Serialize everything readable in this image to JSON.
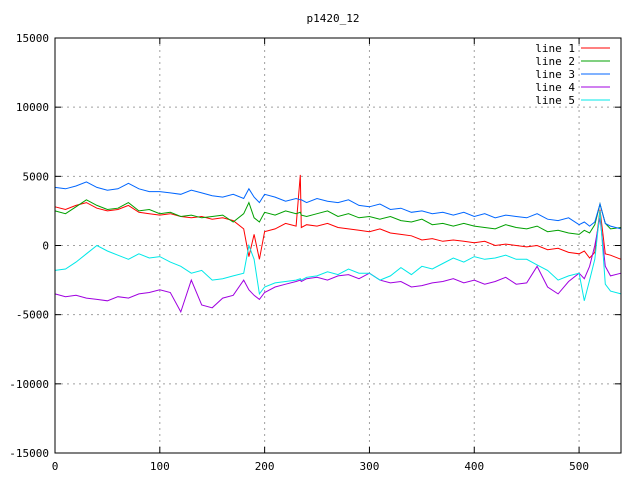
{
  "chart_data": {
    "type": "line",
    "title": "p1420_12",
    "xlabel": "",
    "ylabel": "",
    "xlim": [
      0,
      540
    ],
    "ylim": [
      -15000,
      15000
    ],
    "xticks": [
      0,
      100,
      200,
      300,
      400,
      500
    ],
    "yticks": [
      -15000,
      -10000,
      -5000,
      0,
      5000,
      10000,
      15000
    ],
    "grid": true,
    "legend_position": "top-right",
    "x": [
      0,
      10,
      20,
      30,
      40,
      50,
      60,
      70,
      80,
      90,
      100,
      110,
      120,
      130,
      140,
      150,
      160,
      170,
      180,
      185,
      190,
      195,
      200,
      210,
      220,
      230,
      234,
      235,
      240,
      250,
      260,
      270,
      280,
      290,
      300,
      310,
      320,
      330,
      340,
      350,
      360,
      370,
      380,
      390,
      400,
      410,
      420,
      430,
      440,
      450,
      460,
      470,
      480,
      490,
      500,
      505,
      510,
      515,
      520,
      525,
      530,
      540
    ],
    "series": [
      {
        "name": "line 1",
        "color": "#ff0000",
        "values": [
          2800,
          2600,
          2900,
          3100,
          2700,
          2500,
          2600,
          2900,
          2400,
          2300,
          2200,
          2300,
          2100,
          2000,
          2100,
          1900,
          2000,
          1800,
          1200,
          -800,
          800,
          -1000,
          1000,
          1200,
          1600,
          1400,
          5100,
          1300,
          1500,
          1400,
          1600,
          1300,
          1200,
          1100,
          1000,
          1200,
          900,
          800,
          700,
          400,
          500,
          300,
          400,
          300,
          200,
          300,
          0,
          100,
          0,
          -100,
          0,
          -300,
          -200,
          -500,
          -600,
          -400,
          -900,
          -500,
          2600,
          -600,
          -700,
          -1000
        ]
      },
      {
        "name": "line 2",
        "color": "#00a000",
        "values": [
          2500,
          2300,
          2800,
          3300,
          2900,
          2600,
          2700,
          3100,
          2500,
          2600,
          2300,
          2400,
          2100,
          2200,
          2000,
          2100,
          2200,
          1700,
          2300,
          3100,
          2000,
          1700,
          2400,
          2200,
          2500,
          2300,
          2400,
          2200,
          2100,
          2300,
          2500,
          2100,
          2300,
          2000,
          2100,
          1900,
          2100,
          1800,
          1700,
          1900,
          1500,
          1600,
          1400,
          1600,
          1400,
          1300,
          1200,
          1500,
          1300,
          1200,
          1400,
          1000,
          1100,
          900,
          800,
          1100,
          900,
          1500,
          3000,
          1600,
          1200,
          1300
        ]
      },
      {
        "name": "line 3",
        "color": "#0066ff",
        "values": [
          4200,
          4100,
          4300,
          4600,
          4200,
          4000,
          4100,
          4500,
          4100,
          3900,
          3900,
          3800,
          3700,
          4000,
          3800,
          3600,
          3500,
          3700,
          3400,
          4100,
          3500,
          3100,
          3700,
          3500,
          3200,
          3400,
          3300,
          3300,
          3100,
          3400,
          3200,
          3100,
          3300,
          2900,
          2800,
          3000,
          2600,
          2700,
          2400,
          2500,
          2300,
          2400,
          2200,
          2400,
          2100,
          2300,
          2000,
          2200,
          2100,
          2000,
          2300,
          1900,
          1800,
          2000,
          1500,
          1700,
          1400,
          1700,
          3000,
          1600,
          1400,
          1200
        ]
      },
      {
        "name": "line 4",
        "color": "#a000e0",
        "values": [
          -3500,
          -3700,
          -3600,
          -3800,
          -3900,
          -4000,
          -3700,
          -3800,
          -3500,
          -3400,
          -3200,
          -3400,
          -4800,
          -2500,
          -4300,
          -4500,
          -3800,
          -3600,
          -2500,
          -3200,
          -3600,
          -3900,
          -3400,
          -3000,
          -2800,
          -2600,
          -2500,
          -2600,
          -2400,
          -2300,
          -2500,
          -2200,
          -2100,
          -2400,
          -2000,
          -2500,
          -2700,
          -2600,
          -3000,
          -2900,
          -2700,
          -2600,
          -2400,
          -2700,
          -2500,
          -2800,
          -2600,
          -2300,
          -2800,
          -2700,
          -1500,
          -3000,
          -3500,
          -2600,
          -2000,
          -2400,
          -1500,
          0,
          2000,
          -1500,
          -2200,
          -2000
        ]
      },
      {
        "name": "line 5",
        "color": "#00e8e8",
        "values": [
          -1800,
          -1700,
          -1200,
          -600,
          0,
          -400,
          -700,
          -1000,
          -600,
          -900,
          -800,
          -1200,
          -1500,
          -2000,
          -1800,
          -2500,
          -2400,
          -2200,
          -2000,
          0,
          -1000,
          -3500,
          -3000,
          -2700,
          -2600,
          -2500,
          -2400,
          -2500,
          -2300,
          -2200,
          -1900,
          -2100,
          -1700,
          -2000,
          -2000,
          -2500,
          -2200,
          -1600,
          -2100,
          -1500,
          -1700,
          -1300,
          -900,
          -1200,
          -800,
          -1000,
          -900,
          -700,
          -1000,
          -1000,
          -1400,
          -1800,
          -2500,
          -2200,
          -2000,
          -4000,
          -2500,
          -1000,
          2500,
          -2800,
          -3300,
          -3500
        ]
      }
    ]
  }
}
